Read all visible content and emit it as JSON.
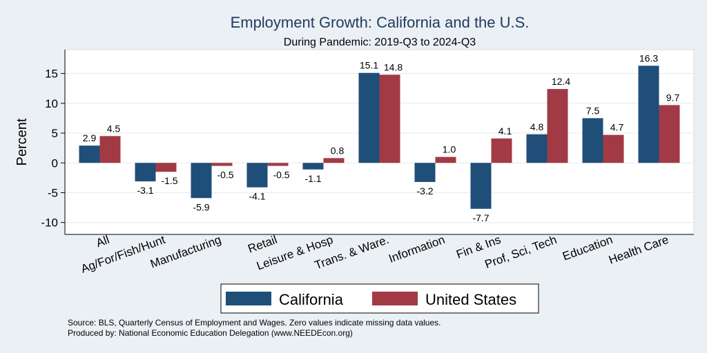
{
  "chart_data": {
    "type": "bar",
    "title": "Employment Growth: California and the U.S.",
    "subtitle": "During Pandemic: 2019-Q3 to 2024-Q3",
    "xlabel": "",
    "ylabel": "Percent",
    "ylim": [
      -12,
      19
    ],
    "yticks": [
      -10,
      -5,
      0,
      5,
      10,
      15
    ],
    "grid": true,
    "legend_position": "bottom",
    "categories": [
      "All",
      "Ag/For/Fish/Hunt",
      "Manufacturing",
      "Retail",
      "Leisure & Hosp",
      "Trans. & Ware.",
      "Information",
      "Fin & Ins",
      "Prof, Sci, Tech",
      "Education",
      "Health Care"
    ],
    "series": [
      {
        "name": "California",
        "color": "#1f4e79",
        "values": [
          2.9,
          -3.1,
          -5.9,
          -4.1,
          -1.1,
          15.1,
          -3.2,
          -7.7,
          4.8,
          7.5,
          16.3
        ]
      },
      {
        "name": "United States",
        "color": "#a23a45",
        "values": [
          4.5,
          -1.5,
          -0.5,
          -0.5,
          0.8,
          14.8,
          1.0,
          4.1,
          12.4,
          4.7,
          9.7
        ]
      }
    ]
  },
  "notes": {
    "source": "Source: BLS, Quarterly Census of Employment and Wages. Zero values indicate missing data values.",
    "produced": "Produced by: National Economic Education Delegation (www.NEEDEcon.org)"
  }
}
